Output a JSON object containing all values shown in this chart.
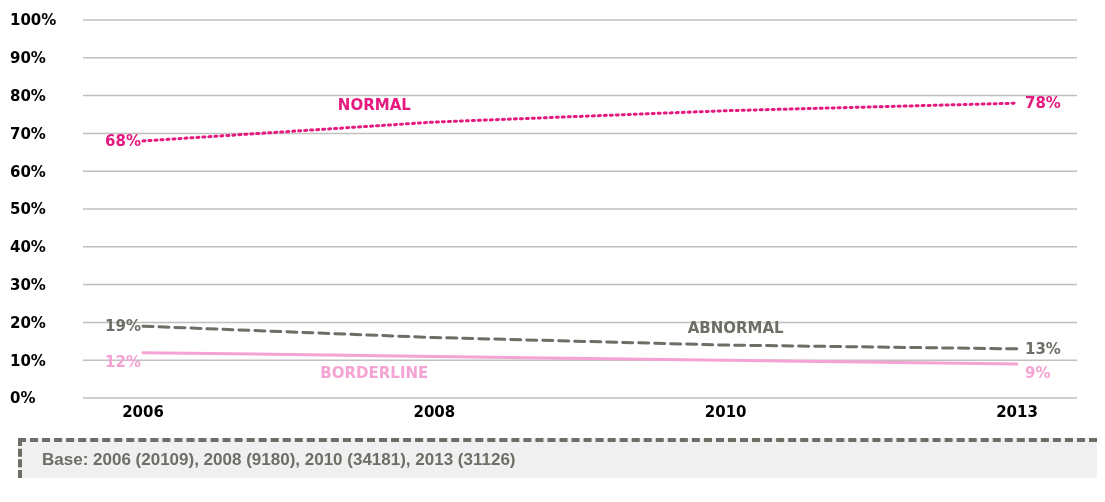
{
  "chart_data": {
    "type": "line",
    "categories": [
      "2006",
      "2008",
      "2010",
      "2013"
    ],
    "series": [
      {
        "name": "NORMAL",
        "color": "#e6197f",
        "line_style": "dotted",
        "values": [
          68,
          73,
          76,
          78
        ],
        "value_labels": [
          "68%",
          null,
          null,
          "78%"
        ]
      },
      {
        "name": "ABNORMAL",
        "color": "#6e6e67",
        "line_style": "dashed",
        "values": [
          19,
          16,
          14,
          13
        ],
        "value_labels": [
          "19%",
          null,
          null,
          "13%"
        ]
      },
      {
        "name": "BORDERLINE",
        "color": "#f4a3d3",
        "line_style": "solid",
        "values": [
          12,
          11,
          10,
          9
        ],
        "value_labels": [
          "12%",
          null,
          null,
          "9%"
        ]
      }
    ],
    "ylim": [
      0,
      100
    ],
    "yticks": [
      {
        "value": 0,
        "label": "0%"
      },
      {
        "value": 10,
        "label": "10%"
      },
      {
        "value": 20,
        "label": "20%"
      },
      {
        "value": 30,
        "label": "30%"
      },
      {
        "value": 40,
        "label": "40%"
      },
      {
        "value": 50,
        "label": "50%"
      },
      {
        "value": 60,
        "label": "60%"
      },
      {
        "value": 70,
        "label": "70%"
      },
      {
        "value": 80,
        "label": "80%"
      },
      {
        "value": 90,
        "label": "90%"
      },
      {
        "value": 100,
        "label": "100%"
      }
    ],
    "grid": "y",
    "legend": false,
    "marker": "none",
    "annotations": [
      "Base:  2006 (20109), 2008 (9180), 2010 (34181), 2013 (31126)"
    ]
  }
}
